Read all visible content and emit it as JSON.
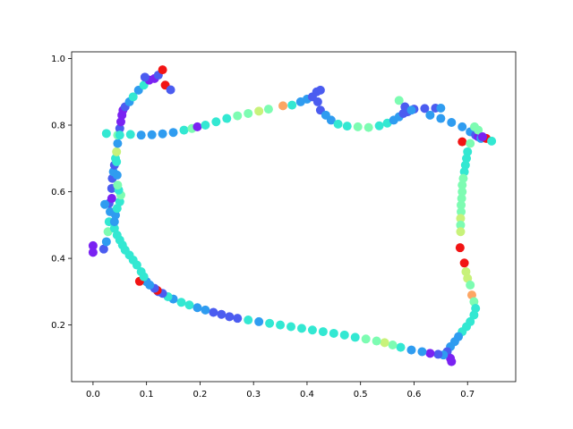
{
  "chart_data": {
    "type": "scatter",
    "title": "",
    "xlabel": "",
    "ylabel": "",
    "xlim": [
      -0.04,
      0.79
    ],
    "ylim": [
      0.03,
      1.02
    ],
    "xticks": [
      0.0,
      0.1,
      0.2,
      0.3,
      0.4,
      0.5,
      0.6,
      0.7
    ],
    "yticks": [
      0.2,
      0.4,
      0.6,
      0.8,
      1.0
    ],
    "xtick_labels": [
      "0.0",
      "0.1",
      "0.2",
      "0.3",
      "0.4",
      "0.5",
      "0.6",
      "0.7"
    ],
    "ytick_labels": [
      "0.2",
      "0.4",
      "0.6",
      "0.8",
      "1.0"
    ],
    "grid": false,
    "legend": "none",
    "colormap": "rainbow",
    "marker_color_keys": [
      "v",
      "b",
      "c",
      "t",
      "g",
      "y",
      "o",
      "r"
    ],
    "colors": {
      "v": "#7a22f2",
      "b": "#4b5cf0",
      "c": "#2f9cf0",
      "t": "#33e8d2",
      "g": "#7dfcb2",
      "y": "#c8f27a",
      "o": "#fda664",
      "r": "#f21414"
    },
    "points": [
      [
        0.0,
        0.438,
        "v"
      ],
      [
        0.0,
        0.418,
        "v"
      ],
      [
        0.02,
        0.428,
        "b"
      ],
      [
        0.025,
        0.45,
        "c"
      ],
      [
        0.028,
        0.48,
        "g"
      ],
      [
        0.03,
        0.51,
        "t"
      ],
      [
        0.032,
        0.54,
        "c"
      ],
      [
        0.03,
        0.565,
        "b"
      ],
      [
        0.035,
        0.58,
        "v"
      ],
      [
        0.035,
        0.61,
        "b"
      ],
      [
        0.036,
        0.64,
        "b"
      ],
      [
        0.038,
        0.66,
        "c"
      ],
      [
        0.04,
        0.68,
        "b"
      ],
      [
        0.042,
        0.7,
        "t"
      ],
      [
        0.044,
        0.72,
        "y"
      ],
      [
        0.046,
        0.745,
        "c"
      ],
      [
        0.046,
        0.77,
        "g"
      ],
      [
        0.05,
        0.79,
        "b"
      ],
      [
        0.052,
        0.81,
        "v"
      ],
      [
        0.054,
        0.83,
        "v"
      ],
      [
        0.056,
        0.845,
        "v"
      ],
      [
        0.06,
        0.855,
        "b"
      ],
      [
        0.068,
        0.87,
        "c"
      ],
      [
        0.075,
        0.885,
        "t"
      ],
      [
        0.085,
        0.905,
        "c"
      ],
      [
        0.095,
        0.92,
        "t"
      ],
      [
        0.105,
        0.935,
        "v"
      ],
      [
        0.115,
        0.94,
        "v"
      ],
      [
        0.122,
        0.95,
        "b"
      ],
      [
        0.13,
        0.966,
        "r"
      ],
      [
        0.135,
        0.92,
        "r"
      ],
      [
        0.145,
        0.906,
        "b"
      ],
      [
        0.097,
        0.944,
        "b"
      ],
      [
        0.022,
        0.562,
        "c"
      ],
      [
        0.025,
        0.775,
        "t"
      ],
      [
        0.05,
        0.77,
        "t"
      ],
      [
        0.07,
        0.772,
        "t"
      ],
      [
        0.09,
        0.77,
        "c"
      ],
      [
        0.11,
        0.771,
        "c"
      ],
      [
        0.13,
        0.774,
        "c"
      ],
      [
        0.15,
        0.778,
        "c"
      ],
      [
        0.17,
        0.785,
        "t"
      ],
      [
        0.185,
        0.79,
        "g"
      ],
      [
        0.195,
        0.795,
        "v"
      ],
      [
        0.21,
        0.8,
        "t"
      ],
      [
        0.23,
        0.81,
        "t"
      ],
      [
        0.25,
        0.82,
        "t"
      ],
      [
        0.27,
        0.828,
        "g"
      ],
      [
        0.29,
        0.835,
        "g"
      ],
      [
        0.31,
        0.842,
        "y"
      ],
      [
        0.328,
        0.848,
        "g"
      ],
      [
        0.355,
        0.858,
        "o"
      ],
      [
        0.372,
        0.86,
        "t"
      ],
      [
        0.388,
        0.87,
        "c"
      ],
      [
        0.4,
        0.878,
        "c"
      ],
      [
        0.41,
        0.885,
        "b"
      ],
      [
        0.418,
        0.9,
        "b"
      ],
      [
        0.425,
        0.905,
        "b"
      ],
      [
        0.42,
        0.87,
        "b"
      ],
      [
        0.425,
        0.845,
        "b"
      ],
      [
        0.435,
        0.83,
        "c"
      ],
      [
        0.445,
        0.815,
        "c"
      ],
      [
        0.458,
        0.803,
        "t"
      ],
      [
        0.475,
        0.797,
        "t"
      ],
      [
        0.495,
        0.795,
        "g"
      ],
      [
        0.515,
        0.793,
        "g"
      ],
      [
        0.535,
        0.798,
        "t"
      ],
      [
        0.55,
        0.806,
        "t"
      ],
      [
        0.562,
        0.815,
        "c"
      ],
      [
        0.572,
        0.825,
        "c"
      ],
      [
        0.58,
        0.835,
        "b"
      ],
      [
        0.588,
        0.84,
        "b"
      ],
      [
        0.6,
        0.848,
        "b"
      ],
      [
        0.62,
        0.85,
        "b"
      ],
      [
        0.64,
        0.851,
        "b"
      ],
      [
        0.65,
        0.851,
        "c"
      ],
      [
        0.572,
        0.874,
        "g"
      ],
      [
        0.583,
        0.855,
        "b"
      ],
      [
        0.595,
        0.845,
        "c"
      ],
      [
        0.63,
        0.83,
        "c"
      ],
      [
        0.65,
        0.82,
        "c"
      ],
      [
        0.67,
        0.808,
        "c"
      ],
      [
        0.69,
        0.795,
        "c"
      ],
      [
        0.705,
        0.78,
        "c"
      ],
      [
        0.715,
        0.77,
        "b"
      ],
      [
        0.72,
        0.765,
        "v"
      ],
      [
        0.725,
        0.76,
        "c"
      ],
      [
        0.735,
        0.76,
        "r"
      ],
      [
        0.745,
        0.752,
        "t"
      ],
      [
        0.713,
        0.795,
        "g"
      ],
      [
        0.72,
        0.785,
        "g"
      ],
      [
        0.69,
        0.75,
        "r"
      ],
      [
        0.728,
        0.765,
        "v"
      ],
      [
        0.705,
        0.745,
        "g"
      ],
      [
        0.7,
        0.72,
        "t"
      ],
      [
        0.698,
        0.7,
        "t"
      ],
      [
        0.696,
        0.68,
        "t"
      ],
      [
        0.694,
        0.66,
        "t"
      ],
      [
        0.692,
        0.64,
        "g"
      ],
      [
        0.69,
        0.62,
        "g"
      ],
      [
        0.69,
        0.6,
        "g"
      ],
      [
        0.689,
        0.58,
        "g"
      ],
      [
        0.688,
        0.56,
        "g"
      ],
      [
        0.688,
        0.54,
        "g"
      ],
      [
        0.687,
        0.52,
        "y"
      ],
      [
        0.687,
        0.5,
        "g"
      ],
      [
        0.687,
        0.48,
        "y"
      ],
      [
        0.686,
        0.432,
        "r"
      ],
      [
        0.694,
        0.386,
        "r"
      ],
      [
        0.697,
        0.36,
        "y"
      ],
      [
        0.7,
        0.34,
        "y"
      ],
      [
        0.705,
        0.32,
        "g"
      ],
      [
        0.708,
        0.29,
        "o"
      ],
      [
        0.712,
        0.27,
        "g"
      ],
      [
        0.715,
        0.25,
        "t"
      ],
      [
        0.712,
        0.23,
        "t"
      ],
      [
        0.705,
        0.21,
        "t"
      ],
      [
        0.698,
        0.195,
        "t"
      ],
      [
        0.69,
        0.18,
        "t"
      ],
      [
        0.683,
        0.165,
        "c"
      ],
      [
        0.676,
        0.15,
        "c"
      ],
      [
        0.668,
        0.135,
        "c"
      ],
      [
        0.662,
        0.12,
        "b"
      ],
      [
        0.668,
        0.1,
        "v"
      ],
      [
        0.67,
        0.09,
        "v"
      ],
      [
        0.655,
        0.11,
        "c"
      ],
      [
        0.645,
        0.112,
        "b"
      ],
      [
        0.63,
        0.115,
        "v"
      ],
      [
        0.615,
        0.12,
        "c"
      ],
      [
        0.595,
        0.125,
        "c"
      ],
      [
        0.575,
        0.133,
        "t"
      ],
      [
        0.56,
        0.14,
        "g"
      ],
      [
        0.545,
        0.147,
        "y"
      ],
      [
        0.53,
        0.152,
        "g"
      ],
      [
        0.51,
        0.158,
        "g"
      ],
      [
        0.49,
        0.163,
        "t"
      ],
      [
        0.47,
        0.17,
        "t"
      ],
      [
        0.45,
        0.175,
        "t"
      ],
      [
        0.43,
        0.18,
        "t"
      ],
      [
        0.41,
        0.185,
        "t"
      ],
      [
        0.39,
        0.19,
        "t"
      ],
      [
        0.37,
        0.195,
        "t"
      ],
      [
        0.35,
        0.2,
        "t"
      ],
      [
        0.33,
        0.205,
        "t"
      ],
      [
        0.31,
        0.21,
        "c"
      ],
      [
        0.29,
        0.215,
        "t"
      ],
      [
        0.27,
        0.22,
        "b"
      ],
      [
        0.255,
        0.225,
        "b"
      ],
      [
        0.24,
        0.232,
        "b"
      ],
      [
        0.225,
        0.238,
        "b"
      ],
      [
        0.21,
        0.245,
        "c"
      ],
      [
        0.195,
        0.252,
        "c"
      ],
      [
        0.18,
        0.26,
        "t"
      ],
      [
        0.165,
        0.268,
        "t"
      ],
      [
        0.15,
        0.278,
        "c"
      ],
      [
        0.14,
        0.285,
        "t"
      ],
      [
        0.13,
        0.295,
        "b"
      ],
      [
        0.122,
        0.3,
        "b"
      ],
      [
        0.12,
        0.304,
        "r"
      ],
      [
        0.115,
        0.31,
        "b"
      ],
      [
        0.106,
        0.32,
        "c"
      ],
      [
        0.1,
        0.33,
        "c"
      ],
      [
        0.087,
        0.331,
        "r"
      ],
      [
        0.095,
        0.345,
        "t"
      ],
      [
        0.09,
        0.36,
        "t"
      ],
      [
        0.082,
        0.38,
        "t"
      ],
      [
        0.075,
        0.395,
        "t"
      ],
      [
        0.068,
        0.41,
        "t"
      ],
      [
        0.06,
        0.425,
        "t"
      ],
      [
        0.055,
        0.44,
        "t"
      ],
      [
        0.05,
        0.455,
        "t"
      ],
      [
        0.045,
        0.47,
        "t"
      ],
      [
        0.04,
        0.49,
        "t"
      ],
      [
        0.04,
        0.51,
        "c"
      ],
      [
        0.042,
        0.53,
        "c"
      ],
      [
        0.045,
        0.55,
        "t"
      ],
      [
        0.05,
        0.57,
        "t"
      ],
      [
        0.052,
        0.59,
        "g"
      ],
      [
        0.048,
        0.605,
        "t"
      ],
      [
        0.046,
        0.62,
        "g"
      ],
      [
        0.045,
        0.65,
        "c"
      ],
      [
        0.044,
        0.69,
        "t"
      ]
    ]
  }
}
